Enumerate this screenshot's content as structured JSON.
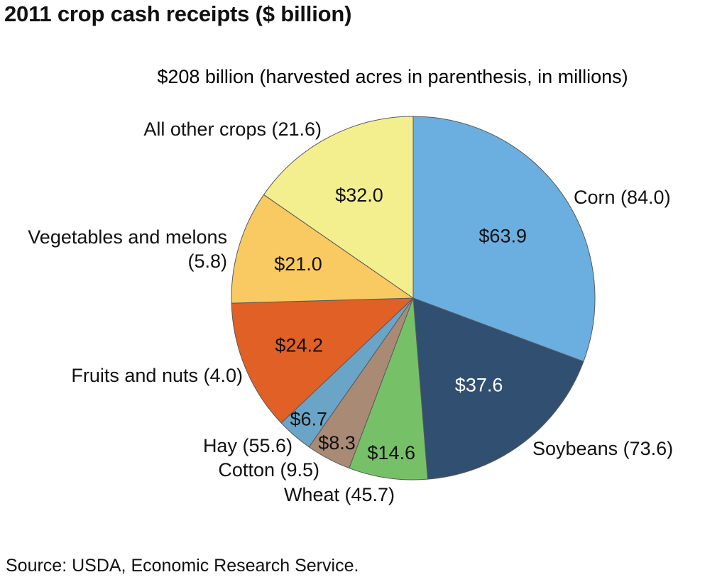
{
  "chart_data": {
    "type": "pie",
    "title": "2011 crop cash receipts ($ billion)",
    "subtitle": "$208 billion (harvested acres in parenthesis, in millions)",
    "source": "Source: USDA, Economic Research Service.",
    "slices": [
      {
        "label": "Corn (84.0)",
        "value": 63.9,
        "value_label": "$63.9",
        "color": "#6aafe0",
        "text_color": "#111111"
      },
      {
        "label": "Soybeans (73.6)",
        "value": 37.6,
        "value_label": "$37.6",
        "color": "#304f71",
        "text_color": "#ffffff"
      },
      {
        "label": "Wheat (45.7)",
        "value": 14.6,
        "value_label": "$14.6",
        "color": "#76c168",
        "text_color": "#111111"
      },
      {
        "label": "Cotton (9.5)",
        "value": 8.3,
        "value_label": "$8.3",
        "color": "#a98a75",
        "text_color": "#111111"
      },
      {
        "label": "Hay (55.6)",
        "value": 6.7,
        "value_label": "$6.7",
        "color": "#6aa5c8",
        "text_color": "#111111"
      },
      {
        "label": "Fruits and nuts (4.0)",
        "value": 24.2,
        "value_label": "$24.2",
        "color": "#e06026",
        "text_color": "#111111"
      },
      {
        "label": "Vegetables and melons\n(5.8)",
        "value": 21.0,
        "value_label": "$21.0",
        "color": "#f9c962",
        "text_color": "#111111"
      },
      {
        "label": "All other crops (21.6)",
        "value": 32.0,
        "value_label": "$32.0",
        "color": "#f3ef8e",
        "text_color": "#111111"
      }
    ]
  }
}
